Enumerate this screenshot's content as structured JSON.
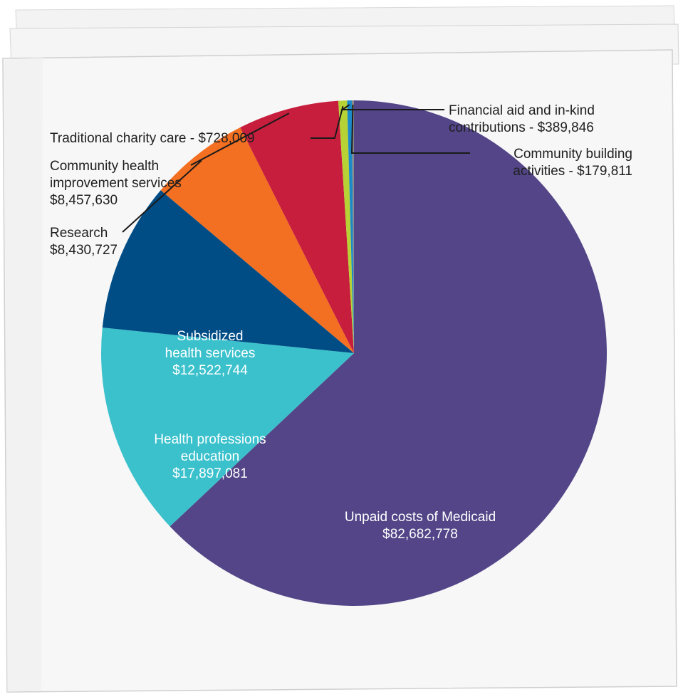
{
  "chart_data": {
    "type": "pie",
    "title": "",
    "start_angle_deg": 0,
    "direction": "clockwise",
    "slices": [
      {
        "label_lines": [
          "Unpaid costs of Medicaid",
          "$82,682,778"
        ],
        "value": 82682778,
        "color": "#534587"
      },
      {
        "label_lines": [
          "Health professions",
          "education",
          "$17,897,081"
        ],
        "value": 17897081,
        "color": "#3bc1cc"
      },
      {
        "label_lines": [
          "Subsidized",
          "health services",
          "$12,522,744"
        ],
        "value": 12522744,
        "color": "#004d86"
      },
      {
        "label_lines": [
          "Research",
          "$8,430,727"
        ],
        "value": 8430727,
        "color": "#f36f21"
      },
      {
        "label_lines": [
          "Community health",
          "improvement services",
          "$8,457,630"
        ],
        "value": 8457630,
        "color": "#c71e3e"
      },
      {
        "label_lines": [
          "Traditional charity care - $728,009"
        ],
        "value": 728009,
        "color": "#b7d234"
      },
      {
        "label_lines": [
          "Financial aid and in-kind",
          "contributions - $389,846"
        ],
        "value": 389846,
        "color": "#1c8ac9"
      },
      {
        "label_lines": [
          "Community building",
          "activities - $179,811"
        ],
        "value": 179811,
        "color": "#8a8a8a"
      }
    ]
  }
}
